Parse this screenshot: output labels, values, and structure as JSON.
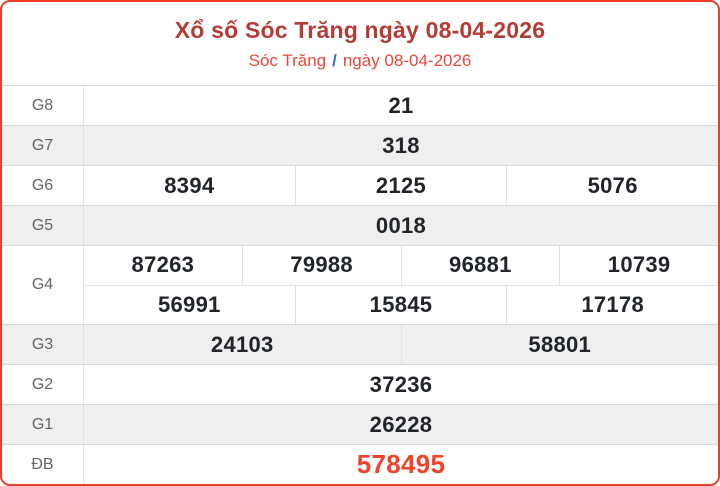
{
  "header": {
    "title": "Xổ số Sóc Trăng ngày 08-04-2026",
    "subtitle_region": "Sóc Trăng",
    "subtitle_separator": "/",
    "subtitle_date": "ngày 08-04-2026"
  },
  "colors": {
    "border_red": "#ee3c26",
    "title_red": "#b33d36",
    "subtitle_red": "#e8483c",
    "separator_blue": "#3b70b5",
    "special_red": "#f0432a",
    "row_alt_bg": "#efefef",
    "value_dark": "#212529",
    "label_gray": "#63666a"
  },
  "table": {
    "rows": [
      {
        "key": "g8",
        "label": "G8",
        "shaded": false,
        "special": false,
        "cells": [
          [
            "21"
          ]
        ]
      },
      {
        "key": "g7",
        "label": "G7",
        "shaded": true,
        "special": false,
        "cells": [
          [
            "318"
          ]
        ]
      },
      {
        "key": "g6",
        "label": "G6",
        "shaded": false,
        "special": false,
        "cells": [
          [
            "8394",
            "2125",
            "5076"
          ]
        ]
      },
      {
        "key": "g5",
        "label": "G5",
        "shaded": true,
        "special": false,
        "cells": [
          [
            "0018"
          ]
        ]
      },
      {
        "key": "g4",
        "label": "G4",
        "shaded": false,
        "special": false,
        "cells": [
          [
            "87263",
            "79988",
            "96881",
            "10739"
          ],
          [
            "56991",
            "15845",
            "17178"
          ]
        ]
      },
      {
        "key": "g3",
        "label": "G3",
        "shaded": true,
        "special": false,
        "cells": [
          [
            "24103",
            "58801"
          ]
        ]
      },
      {
        "key": "g2",
        "label": "G2",
        "shaded": false,
        "special": false,
        "cells": [
          [
            "37236"
          ]
        ]
      },
      {
        "key": "g1",
        "label": "G1",
        "shaded": true,
        "special": false,
        "cells": [
          [
            "26228"
          ]
        ]
      },
      {
        "key": "db",
        "label": "ĐB",
        "shaded": false,
        "special": true,
        "cells": [
          [
            "578495"
          ]
        ]
      }
    ]
  }
}
